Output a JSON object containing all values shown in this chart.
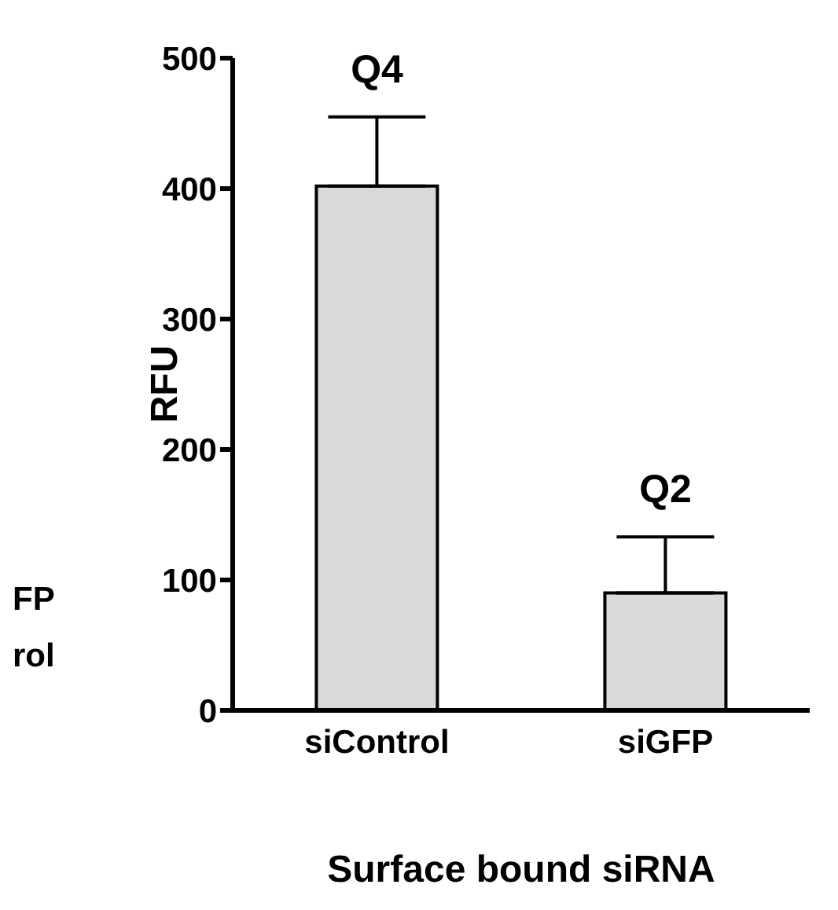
{
  "chart_data": {
    "type": "bar",
    "xlabel": "Surface bound siRNA",
    "ylabel": "RFU",
    "categories": [
      "siControl",
      "siGFP"
    ],
    "values": [
      402,
      90
    ],
    "errors": [
      [
        402,
        455
      ],
      [
        90,
        133
      ]
    ],
    "color": "#d9d9d9",
    "ylim": [
      0,
      500
    ],
    "yticks": [
      0,
      100,
      200,
      300,
      400,
      500
    ],
    "grid": false,
    "legend": false,
    "annotations": [
      {
        "text": "Q4",
        "x": "siControl",
        "y": 455
      },
      {
        "text": "Q2",
        "x": "siGFP",
        "y": 133
      },
      "FP",
      "rol"
    ]
  }
}
